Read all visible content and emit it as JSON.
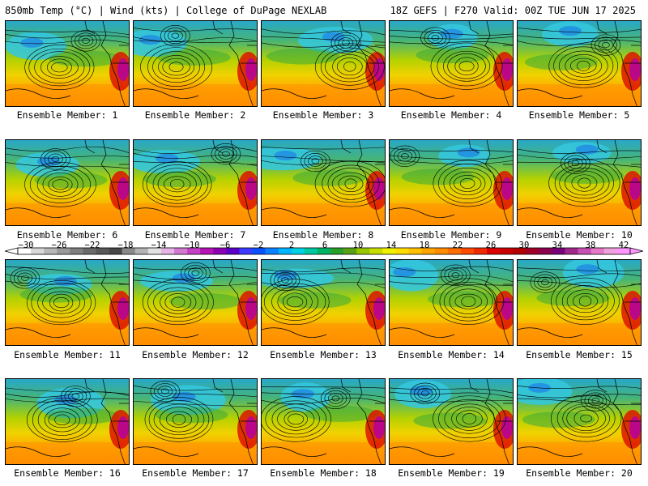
{
  "header": {
    "left": "850mb Temp (°C) | Wind (kts) | College of DuPage NEXLAB",
    "right": "18Z GEFS | F270 Valid: 00Z TUE JUN 17 2025"
  },
  "member_label_prefix": "Ensemble Member: ",
  "members": [
    "1",
    "2",
    "3",
    "4",
    "5",
    "6",
    "7",
    "8",
    "9",
    "10",
    "11",
    "12",
    "13",
    "14",
    "15",
    "16",
    "17",
    "18",
    "19",
    "20"
  ],
  "colorbar": {
    "labels": [
      "-30",
      "-26",
      "-22",
      "-18",
      "-14",
      "-10",
      "-6",
      "-2",
      "2",
      "6",
      "10",
      "14",
      "18",
      "22",
      "26",
      "30",
      "34",
      "38",
      "42"
    ],
    "colors": [
      "#ffffff",
      "#d8d8d8",
      "#b8b8b8",
      "#9a9a9a",
      "#7f7f7f",
      "#6a6a6a",
      "#585858",
      "#474747",
      "#8a8a8a",
      "#b4b4b4",
      "#e2e2e2",
      "#e6b4e6",
      "#d27ad2",
      "#c640c6",
      "#b414b4",
      "#8c00b4",
      "#5a00c8",
      "#3c3cff",
      "#0a50ff",
      "#0a82ff",
      "#00b4ff",
      "#00d2e6",
      "#00c8a0",
      "#00b464",
      "#28a028",
      "#5aa014",
      "#96c800",
      "#c8dc00",
      "#f0f000",
      "#ffdc00",
      "#ffc000",
      "#ffa500",
      "#ff8c00",
      "#ff6e00",
      "#ff4a00",
      "#f02a00",
      "#dc0000",
      "#c80000",
      "#b40000",
      "#a00028",
      "#8c0050",
      "#780078",
      "#a0288c",
      "#c850b4",
      "#e678c8",
      "#f0a0dc",
      "#ff96ff"
    ]
  }
}
